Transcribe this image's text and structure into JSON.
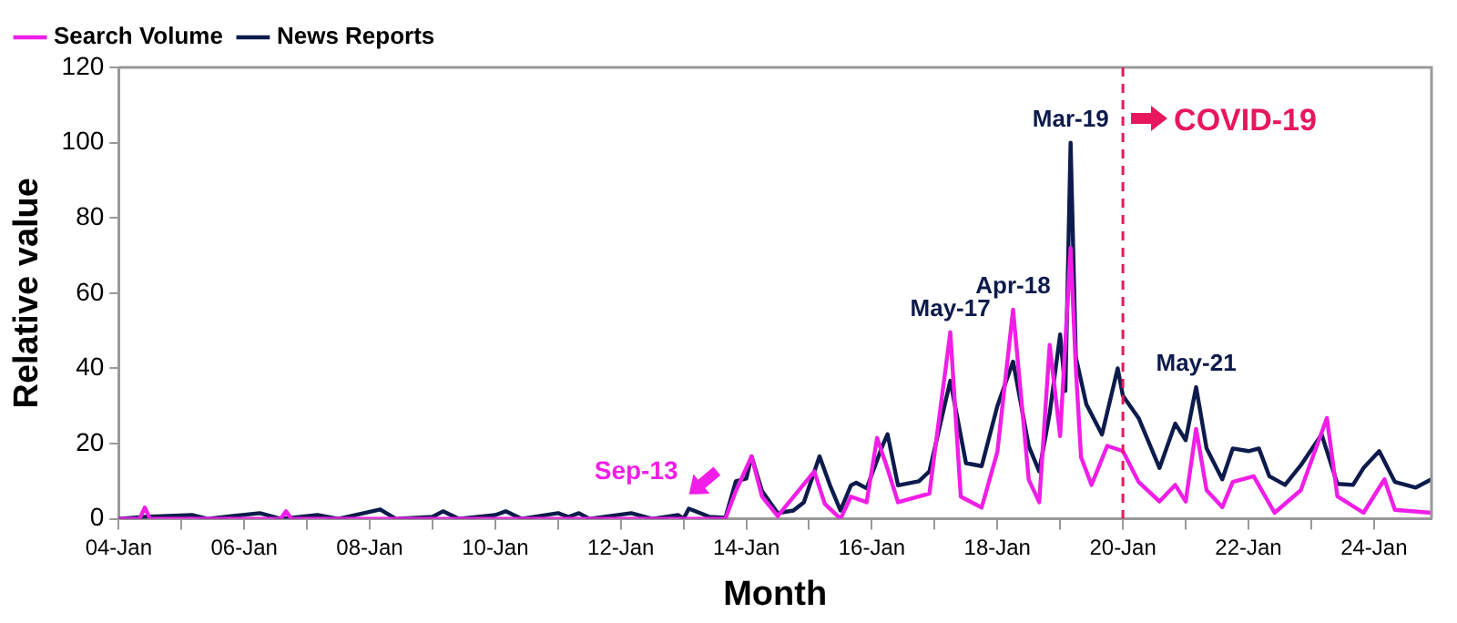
{
  "chart_data": {
    "type": "line",
    "xlabel": "Month",
    "ylabel": "Relative value",
    "xlim": [
      "2004-01",
      "2024-12"
    ],
    "ylim": [
      0,
      120
    ],
    "yticks": [
      0,
      20,
      40,
      60,
      80,
      100,
      120
    ],
    "xticks": [
      {
        "value": "2004-01",
        "label": "04-Jan"
      },
      {
        "value": "2005-01",
        "label": null
      },
      {
        "value": "2006-01",
        "label": "06-Jan"
      },
      {
        "value": "2007-01",
        "label": null
      },
      {
        "value": "2008-01",
        "label": "08-Jan"
      },
      {
        "value": "2009-01",
        "label": null
      },
      {
        "value": "2010-01",
        "label": "10-Jan"
      },
      {
        "value": "2011-01",
        "label": null
      },
      {
        "value": "2012-01",
        "label": "12-Jan"
      },
      {
        "value": "2013-01",
        "label": null
      },
      {
        "value": "2014-01",
        "label": "14-Jan"
      },
      {
        "value": "2015-01",
        "label": null
      },
      {
        "value": "2016-01",
        "label": "16-Jan"
      },
      {
        "value": "2017-01",
        "label": null
      },
      {
        "value": "2018-01",
        "label": "18-Jan"
      },
      {
        "value": "2019-01",
        "label": null
      },
      {
        "value": "2020-01",
        "label": "20-Jan"
      },
      {
        "value": "2021-01",
        "label": null
      },
      {
        "value": "2022-01",
        "label": "22-Jan"
      },
      {
        "value": "2023-01",
        "label": null
      },
      {
        "value": "2024-01",
        "label": "24-Jan"
      }
    ],
    "grid": false,
    "legend": "top left",
    "marker": "none",
    "line_style": "solid",
    "series": [
      {
        "name": "Search Volume",
        "color": "#f01ee6",
        "x": [
          "2004-01",
          "2004-05",
          "2004-06",
          "2004-07",
          "2006-08",
          "2006-09",
          "2006-10",
          "2013-09",
          "2013-11",
          "2014-02",
          "2014-04",
          "2014-07",
          "2015-02",
          "2015-04",
          "2015-07",
          "2015-09",
          "2015-12",
          "2016-02",
          "2016-04",
          "2016-06",
          "2016-12",
          "2017-04",
          "2017-06",
          "2017-10",
          "2018-01",
          "2018-04",
          "2018-07",
          "2018-09",
          "2018-11",
          "2019-01",
          "2019-03",
          "2019-04",
          "2019-05",
          "2019-07",
          "2019-10",
          "2020-01",
          "2020-04",
          "2020-08",
          "2020-11",
          "2021-01",
          "2021-03",
          "2021-05",
          "2021-08",
          "2021-10",
          "2022-02",
          "2022-06",
          "2022-11",
          "2023-04",
          "2023-06",
          "2023-11",
          "2024-03",
          "2024-05",
          "2024-12"
        ],
        "values": [
          0,
          0,
          3,
          0,
          0,
          2,
          0,
          0,
          7.4,
          16.6,
          5.9,
          0.7,
          12.6,
          4,
          0,
          5.9,
          4.4,
          21.5,
          13.3,
          4.4,
          6.7,
          49.6,
          5.9,
          3,
          17.8,
          55.6,
          10.4,
          4.4,
          46.2,
          22,
          72,
          40,
          16.4,
          9,
          19.4,
          18,
          9.8,
          4.6,
          9,
          4.6,
          23.9,
          7.6,
          3.1,
          9.8,
          11.3,
          1.6,
          7.6,
          26.8,
          6,
          1.6,
          10.5,
          2.4,
          1.6
        ]
      },
      {
        "name": "News Reports",
        "color": "#0d1b4c",
        "x": [
          "2004-01",
          "2004-06",
          "2005-03",
          "2005-06",
          "2006-04",
          "2006-08",
          "2007-03",
          "2007-07",
          "2008-03",
          "2008-06",
          "2009-01",
          "2009-03",
          "2009-06",
          "2010-01",
          "2010-03",
          "2010-06",
          "2011-01",
          "2011-03",
          "2011-05",
          "2011-07",
          "2012-03",
          "2012-07",
          "2012-12",
          "2013-01",
          "2013-02",
          "2013-06",
          "2013-09",
          "2013-11",
          "2014-01",
          "2014-02",
          "2014-04",
          "2014-07",
          "2014-10",
          "2014-12",
          "2015-03",
          "2015-05",
          "2015-07",
          "2015-09",
          "2015-10",
          "2015-12",
          "2016-03",
          "2016-04",
          "2016-06",
          "2016-10",
          "2016-12",
          "2017-04",
          "2017-07",
          "2017-10",
          "2018-01",
          "2018-04",
          "2018-07",
          "2018-09",
          "2018-11",
          "2019-01",
          "2019-02",
          "2019-03",
          "2019-04",
          "2019-06",
          "2019-09",
          "2019-12",
          "2020-01",
          "2020-04",
          "2020-08",
          "2020-11",
          "2021-01",
          "2021-03",
          "2021-05",
          "2021-08",
          "2021-10",
          "2022-01",
          "2022-03",
          "2022-05",
          "2022-08",
          "2022-11",
          "2023-03",
          "2023-06",
          "2023-09",
          "2023-11",
          "2024-02",
          "2024-05",
          "2024-09",
          "2024-12"
        ],
        "values": [
          0,
          0.5,
          1,
          0,
          1.5,
          0,
          1,
          0,
          2.5,
          0,
          0.5,
          2,
          0,
          1,
          2,
          0,
          1.5,
          0.5,
          1.5,
          0,
          1.5,
          0,
          1,
          0,
          2.7,
          0.5,
          0.3,
          10,
          10.7,
          16.6,
          7.4,
          1.5,
          2.2,
          4.4,
          16.6,
          8.9,
          2.2,
          8.9,
          9.6,
          8.1,
          19.3,
          22.5,
          8.9,
          10,
          12.6,
          36.7,
          14.8,
          14,
          30,
          41.8,
          19.3,
          12.6,
          28,
          49,
          34,
          100,
          43,
          30.5,
          22.4,
          40,
          32.7,
          26.8,
          13.5,
          25.3,
          20.9,
          35,
          18.7,
          10.5,
          18.7,
          18,
          18.7,
          11.3,
          9,
          14.2,
          22.4,
          9.3,
          9,
          13.5,
          18,
          9.8,
          8.3,
          10.5
        ]
      }
    ],
    "ref_lines": [
      {
        "axis": "x",
        "value": "2020-01",
        "label": "COVID-19",
        "color": "#e8175d",
        "line_style": "dashed"
      }
    ],
    "annotations": [
      {
        "text": "Sep-13",
        "x": "2013-09",
        "y": 0
      },
      {
        "text": "May-17",
        "x": "2017-04",
        "y": 49.6
      },
      {
        "text": "Apr-18",
        "x": "2018-04",
        "y": 55.6
      },
      {
        "text": "Mar-19",
        "x": "2019-03",
        "y": 100
      },
      {
        "text": "May-21",
        "x": "2021-03",
        "y": 35
      }
    ]
  }
}
